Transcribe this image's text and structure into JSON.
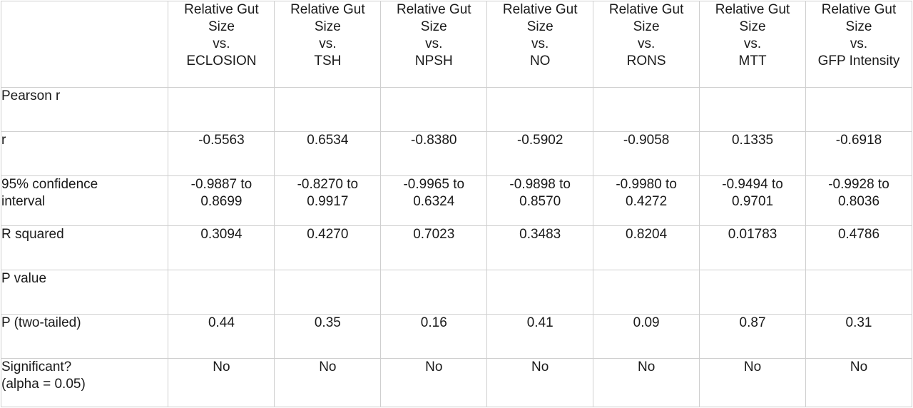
{
  "table": {
    "columns": [
      {
        "line1": "Relative Gut",
        "line2": "Size",
        "line3": "vs.",
        "line4": "ECLOSION"
      },
      {
        "line1": "Relative Gut",
        "line2": "Size",
        "line3": "vs.",
        "line4": "TSH"
      },
      {
        "line1": "Relative Gut",
        "line2": "Size",
        "line3": "vs.",
        "line4": "NPSH"
      },
      {
        "line1": "Relative Gut",
        "line2": "Size",
        "line3": "vs.",
        "line4": "NO"
      },
      {
        "line1": "Relative Gut",
        "line2": "Size",
        "line3": "vs.",
        "line4": "RONS"
      },
      {
        "line1": "Relative Gut",
        "line2": "Size",
        "line3": "vs.",
        "line4": "MTT"
      },
      {
        "line1": "Relative Gut",
        "line2": "Size",
        "line3": "vs.",
        "line4": "GFP Intensity"
      }
    ],
    "rows": [
      {
        "label": "Pearson r",
        "values": [
          "",
          "",
          "",
          "",
          "",
          "",
          ""
        ]
      },
      {
        "label": "r",
        "values": [
          "-0.5563",
          "0.6534",
          "-0.8380",
          "-0.5902",
          "-0.9058",
          "0.1335",
          "-0.6918"
        ]
      },
      {
        "label": "95% confidence interval",
        "label_line1": "95% confidence",
        "label_line2": "interval",
        "values": [
          {
            "l1": "-0.9887 to",
            "l2": "0.8699"
          },
          {
            "l1": "-0.8270 to",
            "l2": "0.9917"
          },
          {
            "l1": "-0.9965 to",
            "l2": "0.6324"
          },
          {
            "l1": "-0.9898 to",
            "l2": "0.8570"
          },
          {
            "l1": "-0.9980 to",
            "l2": "0.4272"
          },
          {
            "l1": "-0.9494 to",
            "l2": "0.9701"
          },
          {
            "l1": "-0.9928 to",
            "l2": "0.8036"
          }
        ]
      },
      {
        "label": "R squared",
        "values": [
          "0.3094",
          "0.4270",
          "0.7023",
          "0.3483",
          "0.8204",
          "0.01783",
          "0.4786"
        ]
      },
      {
        "label": "P value",
        "values": [
          "",
          "",
          "",
          "",
          "",
          "",
          ""
        ]
      },
      {
        "label": "P (two-tailed)",
        "values": [
          "0.44",
          "0.35",
          "0.16",
          "0.41",
          "0.09",
          "0.87",
          "0.31"
        ]
      },
      {
        "label": "Significant? (alpha = 0.05)",
        "label_line1": "Significant?",
        "label_line2": "(alpha = 0.05)",
        "values": [
          "No",
          "No",
          "No",
          "No",
          "No",
          "No",
          "No"
        ]
      }
    ]
  },
  "colors": {
    "border": "#cfcfcf",
    "text": "#1a1a1a",
    "background": "#ffffff"
  }
}
